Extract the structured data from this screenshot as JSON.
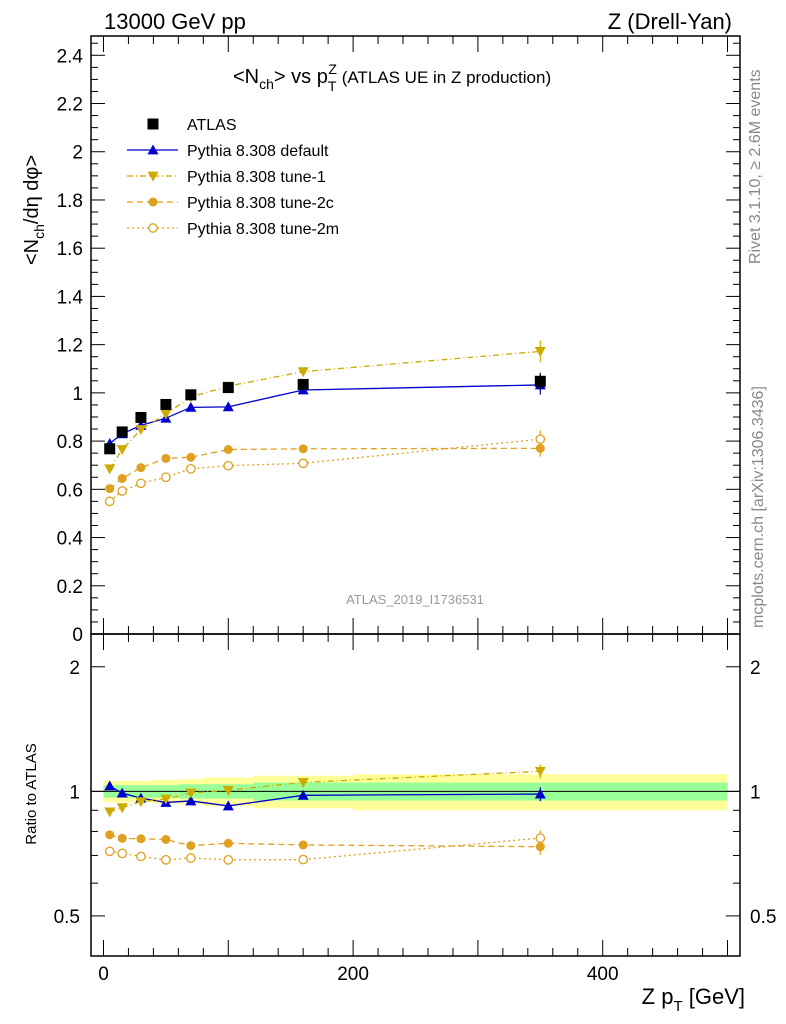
{
  "header": {
    "left": "13000 GeV pp",
    "right": "Z (Drell-Yan)"
  },
  "side_labels": {
    "rivet": "Rivet 3.1.10, ≥ 2.6M events",
    "mcplots": "mcplots.cern.ch [arXiv:1306.3436]"
  },
  "chart_data": {
    "type": "scatter",
    "title_main": "<N",
    "title_main_sub": "ch",
    "title_mid": "> vs p",
    "title_sub": "T",
    "title_sup": "Z",
    "title_suffix": " (ATLAS UE in Z production)",
    "watermark": "ATLAS_2019_I1736531",
    "ylabel_top": "<N",
    "ylabel_top_sub": "ch",
    "ylabel_top_rest": "/dη dφ>",
    "ylabel_ratio": "Ratio to ATLAS",
    "xlabel_main": "Z p",
    "xlabel_sub": "T",
    "xlabel_rest": " [GeV]",
    "xlim": [
      -10,
      510
    ],
    "ylim_main": [
      0,
      2.48
    ],
    "ylim_ratio_log": [
      0.4,
      2.4
    ],
    "x_ticks": [
      "0",
      "200",
      "400"
    ],
    "y_ticks_main": [
      "0",
      "0.2",
      "0.4",
      "0.6",
      "0.8",
      "1",
      "1.2",
      "1.4",
      "1.6",
      "1.8",
      "2",
      "2.2",
      "2.4"
    ],
    "y_ticks_ratio": [
      "0.5",
      "1",
      "2"
    ],
    "legend_position": "top-left",
    "x": [
      5,
      15,
      30,
      50,
      70,
      100,
      160,
      350
    ],
    "bin_edges": [
      0,
      10,
      20,
      40,
      60,
      80,
      120,
      200,
      500
    ],
    "atlas": {
      "name": "ATLAS",
      "values": [
        0.768,
        0.838,
        0.898,
        0.952,
        0.992,
        1.022,
        1.035,
        1.048
      ],
      "errors": [
        0.01,
        0.01,
        0.01,
        0.012,
        0.012,
        0.015,
        0.018,
        0.035
      ],
      "band_stat": [
        0.035,
        0.035,
        0.035,
        0.035,
        0.04,
        0.04,
        0.05,
        0.05
      ],
      "band_total": [
        0.06,
        0.06,
        0.06,
        0.065,
        0.07,
        0.08,
        0.09,
        0.1
      ]
    },
    "series": [
      {
        "name": "Pythia 8.308 default",
        "values": [
          0.79,
          0.83,
          0.865,
          0.895,
          0.94,
          0.942,
          1.012,
          1.033
        ],
        "errors": [
          0.005,
          0.005,
          0.005,
          0.008,
          0.008,
          0.01,
          0.015,
          0.04
        ],
        "ratio": [
          1.03,
          0.99,
          0.963,
          0.94,
          0.948,
          0.922,
          0.978,
          0.985
        ],
        "color": "#0000cc",
        "style": "solid",
        "marker": "triangle-up"
      },
      {
        "name": "Pythia 8.308 tune-1",
        "values": [
          0.685,
          0.765,
          0.848,
          0.912,
          0.983,
          1.028,
          1.088,
          1.172
        ],
        "errors": [
          0.005,
          0.005,
          0.005,
          0.008,
          0.008,
          0.01,
          0.015,
          0.045
        ],
        "ratio": [
          0.892,
          0.913,
          0.944,
          0.958,
          0.991,
          1.006,
          1.051,
          1.118
        ],
        "color": "#ccaa00",
        "style": "dashdot",
        "marker": "triangle-down"
      },
      {
        "name": "Pythia 8.308 tune-2c",
        "values": [
          0.603,
          0.645,
          0.69,
          0.728,
          0.733,
          0.765,
          0.768,
          0.77
        ],
        "errors": [
          0.005,
          0.005,
          0.005,
          0.008,
          0.008,
          0.01,
          0.015,
          0.035
        ],
        "ratio": [
          0.785,
          0.77,
          0.768,
          0.765,
          0.739,
          0.749,
          0.742,
          0.735
        ],
        "color": "#e0a020",
        "style": "dashed",
        "marker": "circle"
      },
      {
        "name": "Pythia 8.308 tune-2m",
        "values": [
          0.55,
          0.593,
          0.625,
          0.65,
          0.685,
          0.698,
          0.708,
          0.808
        ],
        "errors": [
          0.005,
          0.005,
          0.005,
          0.008,
          0.008,
          0.01,
          0.015,
          0.035
        ],
        "ratio": [
          0.716,
          0.708,
          0.696,
          0.683,
          0.69,
          0.683,
          0.684,
          0.771
        ],
        "color": "#e0a020",
        "style": "dotted",
        "marker": "circle-open"
      }
    ]
  }
}
